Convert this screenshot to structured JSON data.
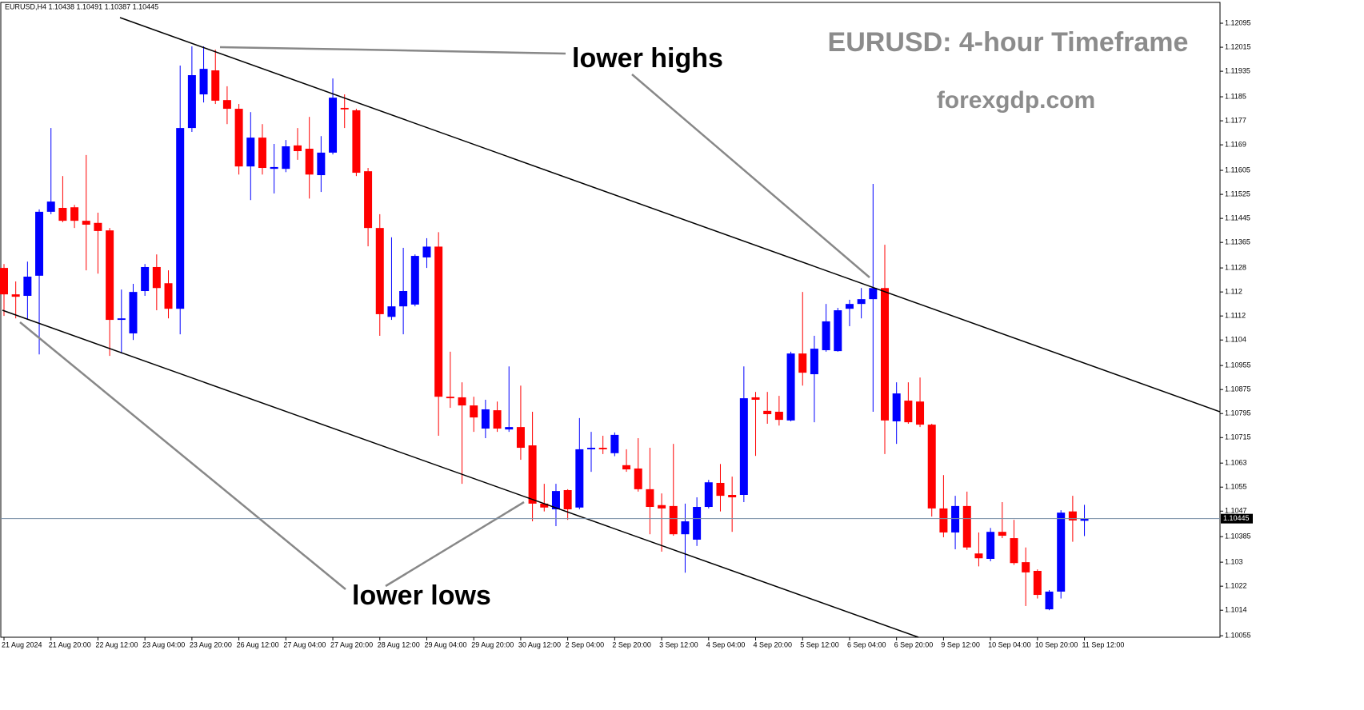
{
  "chart_data": {
    "type": "candlestick",
    "header": "EURUSD,H4  1.10438 1.10491 1.10387 1.10445",
    "title": "EURUSD: 4-hour Timeframe",
    "subtitle": "forexgdp.com",
    "annotations": [
      "lower highs",
      "lower lows"
    ],
    "up_color": "#0000ff",
    "down_color": "#ff0000",
    "current_price": 1.10445,
    "categories": [
      "21 Aug 2024",
      null,
      null,
      null,
      "21 Aug 20:00",
      null,
      null,
      null,
      "22 Aug 12:00",
      null,
      null,
      null,
      "23 Aug 04:00",
      null,
      null,
      null,
      "23 Aug 20:00",
      null,
      null,
      null,
      "26 Aug 12:00",
      null,
      null,
      null,
      "27 Aug 04:00",
      null,
      null,
      null,
      "27 Aug 20:00",
      null,
      null,
      null,
      "28 Aug 12:00",
      null,
      null,
      null,
      "29 Aug 04:00",
      null,
      null,
      null,
      "29 Aug 20:00",
      null,
      null,
      null,
      "30 Aug 12:00",
      null,
      null,
      null,
      "2 Sep 04:00",
      null,
      null,
      null,
      "2 Sep 20:00",
      null,
      null,
      null,
      "3 Sep 12:00",
      null,
      null,
      null,
      "4 Sep 04:00",
      null,
      null,
      null,
      "4 Sep 20:00",
      null,
      null,
      null,
      "5 Sep 12:00",
      null,
      null,
      null,
      "6 Sep 04:00",
      null,
      null,
      null,
      "6 Sep 20:00",
      null,
      null,
      null,
      "9 Sep 12:00",
      null,
      null,
      null,
      "10 Sep 04:00",
      null,
      null,
      null,
      "10 Sep 20:00",
      null,
      null,
      null,
      "11 Sep 12:00"
    ],
    "open": [
      1.1128,
      1.11192,
      1.11187,
      1.11254,
      1.11467,
      1.1148,
      1.11482,
      1.11437,
      1.1143,
      1.11405,
      1.11107,
      1.11062,
      1.11203,
      1.11283,
      1.11229,
      1.11144,
      1.11746,
      1.11858,
      1.11938,
      1.11839,
      1.1181,
      1.11618,
      1.11714,
      1.1161,
      1.1161,
      1.11688,
      1.11677,
      1.11589,
      1.11664,
      1.11813,
      1.11805,
      1.11602,
      1.11413,
      1.11117,
      1.11152,
      1.11158,
      1.11315,
      1.11351,
      1.10851,
      1.10849,
      1.10822,
      1.10745,
      1.10806,
      1.10742,
      1.1075,
      1.10689,
      1.10495,
      1.10476,
      1.1054,
      1.10482,
      1.10676,
      1.10681,
      1.10663,
      1.10623,
      1.10612,
      1.10543,
      1.1049,
      1.10487,
      1.10393,
      1.10375,
      1.10484,
      1.10564,
      1.10524,
      1.10524,
      1.10849,
      1.10804,
      1.10801,
      1.10772,
      1.10995,
      1.10926,
      1.11006,
      1.11003,
      1.11144,
      1.1116,
      1.11176,
      1.11213,
      1.10769,
      1.10838,
      1.10835,
      1.10758,
      1.10479,
      1.10399,
      1.10487,
      1.10329,
      1.10311,
      1.10401,
      1.1038,
      1.103,
      1.10271,
      1.10143,
      1.10202,
      1.10469,
      1.10438
    ],
    "high": [
      1.11293,
      1.11235,
      1.11301,
      1.11475,
      1.11746,
      1.11586,
      1.1149,
      1.11656,
      1.11464,
      1.11413,
      1.11208,
      1.11227,
      1.11293,
      1.11325,
      1.11272,
      1.11954,
      1.12018,
      1.12018,
      1.12007,
      1.11885,
      1.11826,
      1.11799,
      1.11759,
      1.11693,
      1.11706,
      1.11746,
      1.11783,
      1.11719,
      1.11911,
      1.11858,
      1.1181,
      1.11613,
      1.11459,
      1.11382,
      1.11347,
      1.11325,
      1.11379,
      1.11399,
      1.11001,
      1.10899,
      1.10851,
      1.10841,
      1.10835,
      1.10952,
      1.10888,
      1.10801,
      1.10561,
      1.10561,
      1.10543,
      1.1078,
      1.10734,
      1.10721,
      1.10732,
      1.10676,
      1.10713,
      1.10681,
      1.10529,
      1.10694,
      1.10495,
      1.10516,
      1.10574,
      1.10627,
      1.10585,
      1.10952,
      1.10867,
      1.10867,
      1.10854,
      1.11001,
      1.112,
      1.11054,
      1.1116,
      1.11147,
      1.11174,
      1.11213,
      1.1156,
      1.11357,
      1.10899,
      1.10899,
      1.10915,
      1.10761,
      1.1059,
      1.10521,
      1.10535,
      1.10399,
      1.10414,
      1.105,
      1.10441,
      1.10349,
      1.10276,
      1.10207,
      1.10473,
      1.10521,
      1.10491
    ],
    "low": [
      1.1112,
      1.11112,
      1.11107,
      1.10992,
      1.11459,
      1.11432,
      1.11413,
      1.11272,
      1.11261,
      1.10987,
      1.10995,
      1.1104,
      1.11187,
      1.11139,
      1.11112,
      1.11059,
      1.11733,
      1.11831,
      1.11826,
      1.11759,
      1.11591,
      1.11506,
      1.11591,
      1.11528,
      1.11599,
      1.1164,
      1.11511,
      1.11533,
      1.11658,
      1.11746,
      1.11586,
      1.11352,
      1.11054,
      1.11107,
      1.11059,
      1.11152,
      1.1128,
      1.10721,
      1.10814,
      1.10561,
      1.10734,
      1.10713,
      1.10734,
      1.10734,
      1.10641,
      1.10436,
      1.10469,
      1.1042,
      1.10441,
      1.10476,
      1.10601,
      1.1066,
      1.10653,
      1.10601,
      1.10535,
      1.10393,
      1.10335,
      1.10388,
      1.10265,
      1.10354,
      1.10479,
      1.10469,
      1.10401,
      1.105,
      1.10654,
      1.10761,
      1.10755,
      1.10769,
      1.10888,
      1.10766,
      1.11001,
      1.11001,
      1.11086,
      1.11112,
      1.10801,
      1.1066,
      1.10694,
      1.10761,
      1.1075,
      1.10452,
      1.10383,
      1.10343,
      1.10341,
      1.10286,
      1.10303,
      1.1038,
      1.10291,
      1.10154,
      1.10179,
      1.1014,
      1.10179,
      1.10368,
      1.10387
    ],
    "close": [
      1.11192,
      1.11184,
      1.11251,
      1.11467,
      1.11501,
      1.11437,
      1.11437,
      1.11424,
      1.11403,
      1.11107,
      1.11112,
      1.112,
      1.11283,
      1.11213,
      1.11144,
      1.11746,
      1.11922,
      1.11943,
      1.11837,
      1.1181,
      1.11618,
      1.11714,
      1.11613,
      1.11616,
      1.11685,
      1.11669,
      1.11591,
      1.11664,
      1.11847,
      1.11808,
      1.11597,
      1.11413,
      1.11126,
      1.11152,
      1.11203,
      1.1132,
      1.11351,
      1.10851,
      1.10846,
      1.10822,
      1.10782,
      1.10809,
      1.10745,
      1.1075,
      1.10681,
      1.10495,
      1.10482,
      1.10537,
      1.10476,
      1.10676,
      1.10681,
      1.10676,
      1.10724,
      1.10609,
      1.10543,
      1.10484,
      1.10479,
      1.10393,
      1.10436,
      1.10484,
      1.10566,
      1.10521,
      1.10516,
      1.10846,
      1.10841,
      1.10793,
      1.10774,
      1.10995,
      1.10931,
      1.11011,
      1.11102,
      1.11139,
      1.1116,
      1.11176,
      1.11213,
      1.10772,
      1.10862,
      1.10766,
      1.10758,
      1.10479,
      1.10399,
      1.10487,
      1.10349,
      1.10313,
      1.10401,
      1.10388,
      1.10297,
      1.10266,
      1.10191,
      1.10202,
      1.10465,
      1.10439,
      1.10445
    ],
    "ylim": [
      1.1005,
      1.12167
    ],
    "yticks": [
      1.12095,
      1.12015,
      1.11935,
      1.1185,
      1.1177,
      1.1169,
      1.11605,
      1.11525,
      1.11445,
      1.11365,
      1.1128,
      1.112,
      1.1112,
      1.1104,
      1.10955,
      1.10875,
      1.10795,
      1.10715,
      1.1063,
      1.1055,
      1.1047,
      1.10385,
      1.103,
      1.1022,
      1.1014,
      1.10055
    ]
  }
}
